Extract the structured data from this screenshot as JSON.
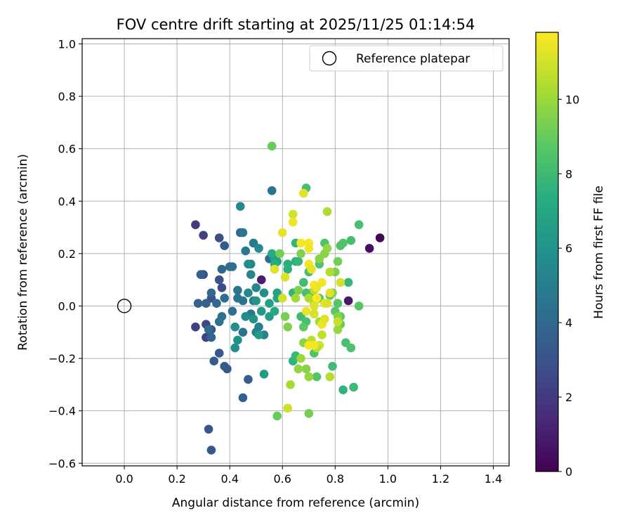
{
  "chart_data": {
    "type": "scatter",
    "title": "FOV centre drift starting at 2025/11/25 01:14:54",
    "xlabel": "Angular distance from reference (arcmin)",
    "ylabel": "Rotation from reference (arcmin)",
    "xlim": [
      -0.16,
      1.46
    ],
    "ylim": [
      -0.61,
      1.02
    ],
    "xticks": [
      0.0,
      0.2,
      0.4,
      0.6,
      0.8,
      1.0,
      1.2,
      1.4
    ],
    "yticks": [
      -0.6,
      -0.4,
      -0.2,
      0.0,
      0.2,
      0.4,
      0.6,
      0.8,
      1.0
    ],
    "xtick_labels": [
      "0.0",
      "0.2",
      "0.4",
      "0.6",
      "0.8",
      "1.0",
      "1.2",
      "1.4"
    ],
    "ytick_labels": [
      "−0.6",
      "−0.4",
      "−0.2",
      "0.0",
      "0.2",
      "0.4",
      "0.6",
      "0.8",
      "1.0"
    ],
    "grid": true,
    "legend": {
      "placement": "top-right",
      "label": "Reference platepar"
    },
    "reference_point": {
      "x": 0.0,
      "y": 0.0
    },
    "colorbar": {
      "label": "Hours from first FF file",
      "min": 0,
      "max": 11.8,
      "ticks": [
        0,
        2,
        4,
        6,
        8,
        10
      ],
      "tick_labels": [
        "0",
        "2",
        "4",
        "6",
        "8",
        "10"
      ],
      "colormap": "viridis"
    },
    "points": [
      {
        "x": 0.97,
        "y": 0.26,
        "h": 0.2
      },
      {
        "x": 0.93,
        "y": 0.22,
        "h": 0.5
      },
      {
        "x": 0.85,
        "y": 0.02,
        "h": 0.8
      },
      {
        "x": 0.52,
        "y": 0.1,
        "h": 1.0
      },
      {
        "x": 0.27,
        "y": 0.31,
        "h": 2.0
      },
      {
        "x": 0.3,
        "y": 0.27,
        "h": 2.3
      },
      {
        "x": 0.27,
        "y": -0.08,
        "h": 2.2
      },
      {
        "x": 0.31,
        "y": -0.12,
        "h": 2.4
      },
      {
        "x": 0.3,
        "y": 0.12,
        "h": 2.6
      },
      {
        "x": 0.31,
        "y": -0.07,
        "h": 2.5
      },
      {
        "x": 0.36,
        "y": 0.26,
        "h": 2.8
      },
      {
        "x": 0.33,
        "y": 0.03,
        "h": 2.9
      },
      {
        "x": 0.37,
        "y": 0.07,
        "h": 2.7
      },
      {
        "x": 0.33,
        "y": -0.09,
        "h": 3.0
      },
      {
        "x": 0.32,
        "y": -0.47,
        "h": 3.1
      },
      {
        "x": 0.33,
        "y": -0.55,
        "h": 3.2
      },
      {
        "x": 0.36,
        "y": 0.1,
        "h": 3.0
      },
      {
        "x": 0.38,
        "y": 0.23,
        "h": 3.3
      },
      {
        "x": 0.36,
        "y": -0.18,
        "h": 3.2
      },
      {
        "x": 0.34,
        "y": -0.21,
        "h": 3.4
      },
      {
        "x": 0.38,
        "y": -0.23,
        "h": 3.3
      },
      {
        "x": 0.39,
        "y": -0.24,
        "h": 3.2
      },
      {
        "x": 0.47,
        "y": -0.28,
        "h": 3.5
      },
      {
        "x": 0.45,
        "y": -0.35,
        "h": 3.6
      },
      {
        "x": 0.29,
        "y": 0.12,
        "h": 3.5
      },
      {
        "x": 0.28,
        "y": 0.01,
        "h": 3.8
      },
      {
        "x": 0.31,
        "y": 0.01,
        "h": 3.7
      },
      {
        "x": 0.33,
        "y": 0.05,
        "h": 3.9
      },
      {
        "x": 0.35,
        "y": 0.01,
        "h": 4.0
      },
      {
        "x": 0.33,
        "y": -0.12,
        "h": 3.8
      },
      {
        "x": 0.32,
        "y": -0.09,
        "h": 4.1
      },
      {
        "x": 0.37,
        "y": 0.14,
        "h": 3.9
      },
      {
        "x": 0.4,
        "y": 0.15,
        "h": 4.2
      },
      {
        "x": 0.41,
        "y": 0.15,
        "h": 4.3
      },
      {
        "x": 0.37,
        "y": -0.04,
        "h": 4.4
      },
      {
        "x": 0.38,
        "y": 0.03,
        "h": 4.2
      },
      {
        "x": 0.36,
        "y": -0.06,
        "h": 4.5
      },
      {
        "x": 0.41,
        "y": -0.02,
        "h": 4.3
      },
      {
        "x": 0.44,
        "y": 0.28,
        "h": 4.0
      },
      {
        "x": 0.45,
        "y": 0.28,
        "h": 4.6
      },
      {
        "x": 0.49,
        "y": 0.24,
        "h": 4.7
      },
      {
        "x": 0.46,
        "y": 0.21,
        "h": 4.8
      },
      {
        "x": 0.43,
        "y": 0.06,
        "h": 4.5
      },
      {
        "x": 0.45,
        "y": 0.02,
        "h": 4.4
      },
      {
        "x": 0.43,
        "y": 0.03,
        "h": 4.6
      },
      {
        "x": 0.45,
        "y": -0.1,
        "h": 4.5
      },
      {
        "x": 0.48,
        "y": -0.03,
        "h": 4.7
      },
      {
        "x": 0.49,
        "y": 0.02,
        "h": 4.8
      },
      {
        "x": 0.5,
        "y": -0.1,
        "h": 4.9
      },
      {
        "x": 0.51,
        "y": -0.08,
        "h": 5.0
      },
      {
        "x": 0.53,
        "y": -0.11,
        "h": 5.1
      },
      {
        "x": 0.55,
        "y": 0.18,
        "h": 4.2
      },
      {
        "x": 0.56,
        "y": 0.44,
        "h": 4.5
      },
      {
        "x": 0.48,
        "y": 0.16,
        "h": 5.2
      },
      {
        "x": 0.48,
        "y": 0.12,
        "h": 5.3
      },
      {
        "x": 0.47,
        "y": 0.05,
        "h": 5.5
      },
      {
        "x": 0.5,
        "y": 0.07,
        "h": 5.4
      },
      {
        "x": 0.46,
        "y": -0.04,
        "h": 5.6
      },
      {
        "x": 0.42,
        "y": -0.08,
        "h": 5.7
      },
      {
        "x": 0.42,
        "y": -0.16,
        "h": 5.8
      },
      {
        "x": 0.43,
        "y": -0.13,
        "h": 5.9
      },
      {
        "x": 0.44,
        "y": 0.38,
        "h": 5.5
      },
      {
        "x": 0.47,
        "y": 0.16,
        "h": 5.6
      },
      {
        "x": 0.51,
        "y": 0.22,
        "h": 5.7
      },
      {
        "x": 0.53,
        "y": 0.05,
        "h": 5.8
      },
      {
        "x": 0.49,
        "y": -0.05,
        "h": 6.0
      },
      {
        "x": 0.5,
        "y": 0.02,
        "h": 6.1
      },
      {
        "x": 0.52,
        "y": -0.02,
        "h": 6.2
      },
      {
        "x": 0.51,
        "y": -0.11,
        "h": 6.3
      },
      {
        "x": 0.53,
        "y": -0.26,
        "h": 6.4
      },
      {
        "x": 0.55,
        "y": -0.04,
        "h": 6.5
      },
      {
        "x": 0.55,
        "y": 0.01,
        "h": 6.6
      },
      {
        "x": 0.57,
        "y": 0.18,
        "h": 6.4
      },
      {
        "x": 0.58,
        "y": 0.17,
        "h": 6.7
      },
      {
        "x": 0.58,
        "y": 0.05,
        "h": 6.8
      },
      {
        "x": 0.58,
        "y": 0.03,
        "h": 6.9
      },
      {
        "x": 0.57,
        "y": -0.02,
        "h": 7.0
      },
      {
        "x": 0.56,
        "y": 0.2,
        "h": 7.2
      },
      {
        "x": 0.57,
        "y": 0.16,
        "h": 7.3
      },
      {
        "x": 0.62,
        "y": 0.16,
        "h": 7.4
      },
      {
        "x": 0.62,
        "y": 0.14,
        "h": 7.5
      },
      {
        "x": 0.64,
        "y": 0.05,
        "h": 7.6
      },
      {
        "x": 0.65,
        "y": 0.17,
        "h": 7.4
      },
      {
        "x": 0.65,
        "y": 0.24,
        "h": 7.7
      },
      {
        "x": 0.66,
        "y": 0.17,
        "h": 7.8
      },
      {
        "x": 0.64,
        "y": -0.21,
        "h": 7.6
      },
      {
        "x": 0.65,
        "y": -0.19,
        "h": 7.9
      },
      {
        "x": 0.67,
        "y": -0.04,
        "h": 8.0
      },
      {
        "x": 0.69,
        "y": 0.45,
        "h": 8.2
      },
      {
        "x": 0.68,
        "y": 0.09,
        "h": 8.1
      },
      {
        "x": 0.69,
        "y": 0.05,
        "h": 8.2
      },
      {
        "x": 0.71,
        "y": 0.05,
        "h": 8.3
      },
      {
        "x": 0.72,
        "y": -0.03,
        "h": 8.4
      },
      {
        "x": 0.72,
        "y": -0.18,
        "h": 8.5
      },
      {
        "x": 0.73,
        "y": -0.27,
        "h": 8.6
      },
      {
        "x": 0.76,
        "y": 0.24,
        "h": 8.4
      },
      {
        "x": 0.74,
        "y": 0.16,
        "h": 8.5
      },
      {
        "x": 0.74,
        "y": 0.03,
        "h": 8.6
      },
      {
        "x": 0.7,
        "y": 0.13,
        "h": 8.2
      },
      {
        "x": 0.69,
        "y": -0.06,
        "h": 8.3
      },
      {
        "x": 0.68,
        "y": -0.08,
        "h": 8.8
      },
      {
        "x": 0.78,
        "y": 0.04,
        "h": 8.9
      },
      {
        "x": 0.79,
        "y": -0.23,
        "h": 8.0
      },
      {
        "x": 0.8,
        "y": -0.02,
        "h": 8.7
      },
      {
        "x": 0.81,
        "y": 0.01,
        "h": 8.6
      },
      {
        "x": 0.82,
        "y": 0.23,
        "h": 8.4
      },
      {
        "x": 0.83,
        "y": 0.24,
        "h": 8.5
      },
      {
        "x": 0.82,
        "y": -0.04,
        "h": 8.8
      },
      {
        "x": 0.82,
        "y": -0.07,
        "h": 9.0
      },
      {
        "x": 0.83,
        "y": -0.32,
        "h": 7.6
      },
      {
        "x": 0.84,
        "y": -0.14,
        "h": 8.3
      },
      {
        "x": 0.86,
        "y": 0.25,
        "h": 8.2
      },
      {
        "x": 0.85,
        "y": 0.09,
        "h": 7.8
      },
      {
        "x": 0.86,
        "y": -0.16,
        "h": 8.4
      },
      {
        "x": 0.87,
        "y": -0.31,
        "h": 8.0
      },
      {
        "x": 0.89,
        "y": 0.31,
        "h": 8.3
      },
      {
        "x": 0.89,
        "y": 0.0,
        "h": 8.6
      },
      {
        "x": 0.56,
        "y": 0.61,
        "h": 9.0
      },
      {
        "x": 0.59,
        "y": 0.2,
        "h": 9.2
      },
      {
        "x": 0.61,
        "y": -0.04,
        "h": 9.3
      },
      {
        "x": 0.62,
        "y": -0.08,
        "h": 9.5
      },
      {
        "x": 0.66,
        "y": 0.06,
        "h": 9.4
      },
      {
        "x": 0.68,
        "y": -0.14,
        "h": 9.7
      },
      {
        "x": 0.69,
        "y": -0.24,
        "h": 9.6
      },
      {
        "x": 0.7,
        "y": -0.27,
        "h": 9.9
      },
      {
        "x": 0.7,
        "y": -0.41,
        "h": 9.3
      },
      {
        "x": 0.67,
        "y": 0.2,
        "h": 9.5
      },
      {
        "x": 0.74,
        "y": 0.18,
        "h": 9.6
      },
      {
        "x": 0.76,
        "y": 0.2,
        "h": 9.7
      },
      {
        "x": 0.77,
        "y": 0.22,
        "h": 9.8
      },
      {
        "x": 0.8,
        "y": 0.13,
        "h": 9.4
      },
      {
        "x": 0.81,
        "y": 0.17,
        "h": 9.2
      },
      {
        "x": 0.81,
        "y": -0.04,
        "h": 9.6
      },
      {
        "x": 0.81,
        "y": -0.09,
        "h": 9.9
      },
      {
        "x": 0.79,
        "y": 0.05,
        "h": 9.5
      },
      {
        "x": 0.58,
        "y": -0.42,
        "h": 9.0
      },
      {
        "x": 0.63,
        "y": -0.3,
        "h": 10.2
      },
      {
        "x": 0.66,
        "y": -0.24,
        "h": 9.8
      },
      {
        "x": 0.67,
        "y": -0.2,
        "h": 10.0
      },
      {
        "x": 0.65,
        "y": 0.03,
        "h": 10.1
      },
      {
        "x": 0.7,
        "y": 0.03,
        "h": 10.3
      },
      {
        "x": 0.72,
        "y": 0.01,
        "h": 10.4
      },
      {
        "x": 0.72,
        "y": 0.06,
        "h": 10.5
      },
      {
        "x": 0.71,
        "y": -0.13,
        "h": 10.6
      },
      {
        "x": 0.74,
        "y": -0.06,
        "h": 10.2
      },
      {
        "x": 0.75,
        "y": -0.11,
        "h": 10.7
      },
      {
        "x": 0.78,
        "y": 0.13,
        "h": 10.4
      },
      {
        "x": 0.77,
        "y": 0.36,
        "h": 10.3
      },
      {
        "x": 0.78,
        "y": -0.27,
        "h": 10.5
      },
      {
        "x": 0.81,
        "y": -0.06,
        "h": 10.8
      },
      {
        "x": 0.82,
        "y": 0.09,
        "h": 11.0
      },
      {
        "x": 0.74,
        "y": -0.15,
        "h": 10.9
      },
      {
        "x": 0.73,
        "y": -0.16,
        "h": 10.6
      },
      {
        "x": 0.62,
        "y": -0.39,
        "h": 10.9
      },
      {
        "x": 0.6,
        "y": 0.03,
        "h": 11.0
      },
      {
        "x": 0.61,
        "y": 0.11,
        "h": 11.2
      },
      {
        "x": 0.57,
        "y": 0.14,
        "h": 11.3
      },
      {
        "x": 0.6,
        "y": 0.28,
        "h": 11.4
      },
      {
        "x": 0.64,
        "y": 0.35,
        "h": 11.0
      },
      {
        "x": 0.64,
        "y": 0.32,
        "h": 11.5
      },
      {
        "x": 0.68,
        "y": 0.43,
        "h": 11.3
      },
      {
        "x": 0.67,
        "y": 0.24,
        "h": 11.6
      },
      {
        "x": 0.7,
        "y": 0.24,
        "h": 11.7
      },
      {
        "x": 0.7,
        "y": 0.22,
        "h": 11.5
      },
      {
        "x": 0.7,
        "y": 0.16,
        "h": 11.6
      },
      {
        "x": 0.71,
        "y": 0.14,
        "h": 11.4
      },
      {
        "x": 0.72,
        "y": 0.08,
        "h": 11.7
      },
      {
        "x": 0.73,
        "y": 0.07,
        "h": 11.5
      },
      {
        "x": 0.75,
        "y": 0.09,
        "h": 11.6
      },
      {
        "x": 0.73,
        "y": 0.03,
        "h": 11.8
      },
      {
        "x": 0.72,
        "y": 0.0,
        "h": 11.2
      },
      {
        "x": 0.69,
        "y": -0.02,
        "h": 11.4
      },
      {
        "x": 0.72,
        "y": -0.03,
        "h": 11.1
      },
      {
        "x": 0.75,
        "y": -0.07,
        "h": 11.5
      },
      {
        "x": 0.76,
        "y": -0.05,
        "h": 11.3
      },
      {
        "x": 0.72,
        "y": -0.15,
        "h": 11.6
      },
      {
        "x": 0.7,
        "y": -0.15,
        "h": 11.7
      },
      {
        "x": 0.76,
        "y": 0.01,
        "h": 11.4
      },
      {
        "x": 0.77,
        "y": 0.01,
        "h": 11.1
      },
      {
        "x": 0.78,
        "y": 0.05,
        "h": 11.3
      }
    ]
  }
}
